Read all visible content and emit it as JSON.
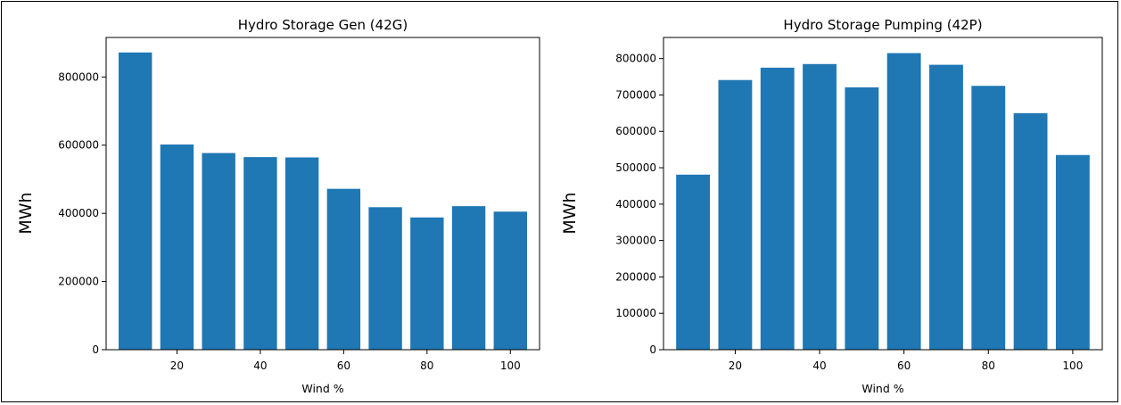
{
  "chart_data": [
    {
      "type": "bar",
      "title": "Hydro Storage Gen (42G)",
      "xlabel": "Wind %",
      "ylabel": "MWh",
      "categories": [
        10,
        20,
        30,
        40,
        50,
        60,
        70,
        80,
        90,
        100
      ],
      "values": [
        872000,
        602000,
        577000,
        565000,
        564000,
        472000,
        418000,
        388000,
        421000,
        405000
      ],
      "xlim": [
        3.0,
        107.0
      ],
      "ylim": [
        0,
        916000
      ],
      "xticks": [
        20,
        40,
        60,
        80,
        100
      ],
      "yticks": [
        0,
        200000,
        400000,
        600000,
        800000
      ],
      "bar_color": "#1f77b4",
      "grid": false
    },
    {
      "type": "bar",
      "title": "Hydro Storage Pumping (42P)",
      "xlabel": "Wind %",
      "ylabel": "MWh",
      "categories": [
        10,
        20,
        30,
        40,
        50,
        60,
        70,
        80,
        90,
        100
      ],
      "values": [
        481000,
        741000,
        775000,
        785000,
        721000,
        815000,
        783000,
        725000,
        650000,
        535000
      ],
      "xlim": [
        3.0,
        107.0
      ],
      "ylim": [
        0,
        858000
      ],
      "xticks": [
        20,
        40,
        60,
        80,
        100
      ],
      "yticks": [
        0,
        100000,
        200000,
        300000,
        400000,
        500000,
        600000,
        700000,
        800000
      ],
      "bar_color": "#1f77b4",
      "grid": false
    }
  ]
}
